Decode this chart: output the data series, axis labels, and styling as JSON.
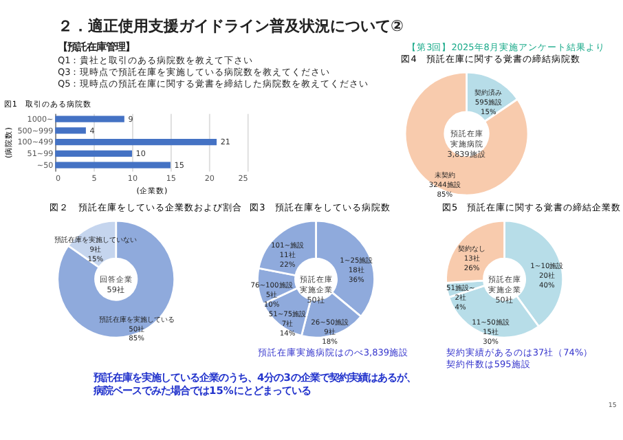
{
  "chart_data": [
    {
      "type": "bar",
      "orientation": "horizontal",
      "title": "図1　取引のある病院数",
      "xlabel": "(企業数)",
      "ylabel": "(病院数)",
      "categories": [
        "1000~",
        "500~999",
        "100~499",
        "51~99",
        "~50"
      ],
      "values": [
        9,
        4,
        21,
        10,
        15
      ],
      "color": "#4472c4",
      "xlim": [
        0,
        25
      ],
      "xticks": [
        0,
        5,
        10,
        15,
        20,
        25
      ],
      "grid": "x",
      "data_labels": true,
      "annotations": [
        "２．適正使用支援ガイドライン普及状況について②",
        "【第3回】2025年8月実施アンケート結果より",
        "【預託在庫管理】",
        "Q1：貴社と取引のある病院数を教えて下さい",
        "Q3：現時点で預託在庫を実施している病院数を教えてください",
        "Q5：現時点の預託在庫に関する覚書を締結した病院数を教えてください"
      ]
    },
    {
      "type": "donut",
      "title": "図4　預託在庫に関する覚書の締結病院数",
      "categories": [
        "契約済み",
        "未契約"
      ],
      "values": [
        595,
        3244
      ],
      "colors": [
        "#b7dde8",
        "#f8cbad"
      ],
      "value_labels": [
        "595施設 15%",
        "3244施設 85%"
      ],
      "annotations": [
        "預託在庫実施病院 3,839施設"
      ]
    },
    {
      "type": "donut",
      "title": "図２　預託在庫をしている企業数および割合",
      "categories": [
        "預託在庫を実施している",
        "預託在庫を実施していない"
      ],
      "values": [
        50,
        9
      ],
      "colors": [
        "#8faadc",
        "#c5d5ee"
      ],
      "value_labels": [
        "50社 85%",
        "9社 15%"
      ],
      "annotations": [
        "回答企業 59社"
      ]
    },
    {
      "type": "donut",
      "title": "図3　預託在庫をしている病院数",
      "categories": [
        "1~25施設",
        "26~50施設",
        "51~75施設",
        "76~100施設",
        "101~施設"
      ],
      "values": [
        18,
        9,
        7,
        5,
        11
      ],
      "colors": [
        "#8faadc",
        "#8faadc",
        "#8faadc",
        "#8faadc",
        "#8faadc"
      ],
      "value_labels": [
        "18社 36%",
        "9社 18%",
        "7社 14%",
        "5社 10%",
        "11社 22%"
      ],
      "annotations": [
        "預託在庫実施企業 50社",
        "預託在庫実施病院はのべ3,839施設"
      ]
    },
    {
      "type": "donut",
      "title": "図5　預託在庫に関する覚書の締結企業数",
      "categories": [
        "1~10施設",
        "11~50施設",
        "51施設~",
        "契約なし"
      ],
      "values": [
        20,
        15,
        2,
        13
      ],
      "colors": [
        "#b7dde8",
        "#b7dde8",
        "#b7dde8",
        "#f8cbad"
      ],
      "value_labels": [
        "20社 40%",
        "15社 30%",
        "2社 4%",
        "13社 26%"
      ],
      "annotations": [
        "預託在庫実施企業 50社",
        "契約実績があるのは37社（74%）",
        "契約件数は595施設",
        "預託在庫を実施している企業のうち、4分の3の企業で契約実績はあるが、",
        "病院ベースでみた場合では15%にとどまっている",
        "15"
      ]
    }
  ]
}
